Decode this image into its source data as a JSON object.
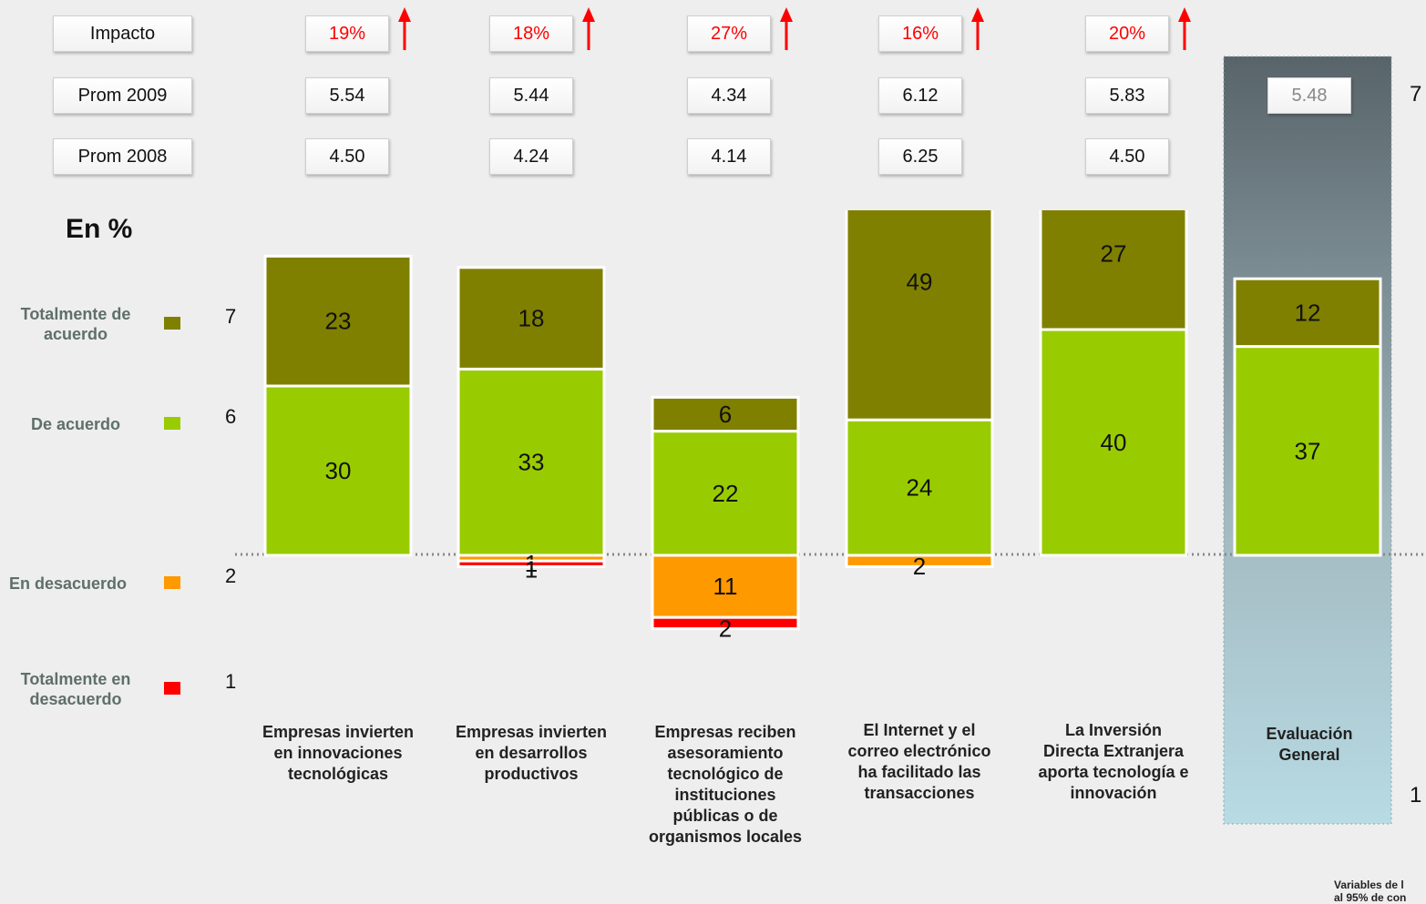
{
  "header": {
    "title": "En %"
  },
  "table": {
    "rows": [
      {
        "label": "Impacto",
        "cells": [
          "19%",
          "18%",
          "27%",
          "16%",
          "20%"
        ]
      },
      {
        "label": "Prom 2009",
        "cells": [
          "5.54",
          "5.44",
          "4.34",
          "6.12",
          "5.83",
          "5.48"
        ]
      },
      {
        "label": "Prom 2008",
        "cells": [
          "4.50",
          "4.24",
          "4.14",
          "6.25",
          "4.50"
        ]
      }
    ]
  },
  "chart_data": {
    "type": "diverging_bar",
    "categories": [
      "Empresas invierten en innovaciones tecnológicas",
      "Empresas invierten en desarrollos productivos",
      "Empresas reciben asesoramiento tecnológico de instituciones públicas o de organismos locales",
      "El Internet y el correo electrónico ha facilitado las transacciones",
      "La Inversión Directa Extranjera aporta tecnología e innovación",
      "Evaluación General"
    ],
    "series": [
      {
        "name": "Totalmente de acuerdo",
        "code": "7",
        "side": "positive",
        "color": "#808000",
        "values": [
          23,
          18,
          6,
          49,
          27,
          12
        ]
      },
      {
        "name": "De acuerdo",
        "code": "6",
        "side": "positive",
        "color": "#99cc00",
        "values": [
          30,
          33,
          22,
          24,
          40,
          37
        ]
      },
      {
        "name": "En desacuerdo",
        "code": "2",
        "side": "negative",
        "color": "#ff9900",
        "values": [
          null,
          1,
          11,
          2,
          null,
          null
        ]
      },
      {
        "name": "Totalmente en desacuerdo",
        "code": "1",
        "side": "negative",
        "color": "#ff0000",
        "values": [
          null,
          1,
          2,
          null,
          null,
          null
        ]
      }
    ],
    "scale_labels": [
      "7",
      "1"
    ]
  },
  "footnote": [
    "Variables de l",
    "al 95% de con"
  ]
}
